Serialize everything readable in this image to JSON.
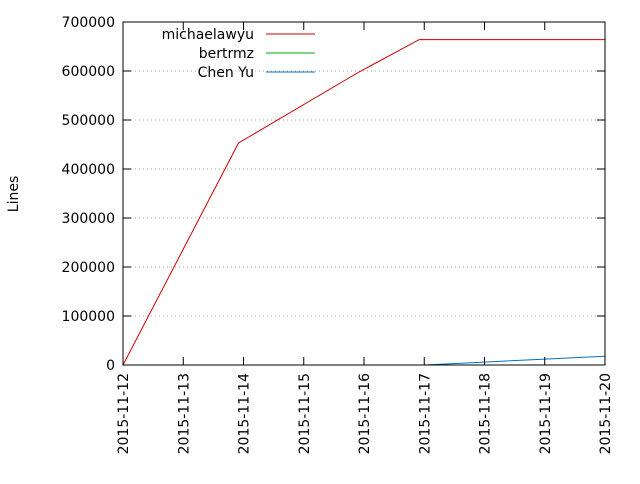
{
  "chart_data": {
    "type": "line",
    "ylabel": "Lines",
    "xlim": [
      "2015-11-12",
      "2015-11-20"
    ],
    "ylim": [
      0,
      700000
    ],
    "y_ticks": [
      0,
      100000,
      200000,
      300000,
      400000,
      500000,
      600000,
      700000
    ],
    "x_ticks": [
      "2015-11-12",
      "2015-11-13",
      "2015-11-14",
      "2015-11-15",
      "2015-11-16",
      "2015-11-17",
      "2015-11-18",
      "2015-11-19",
      "2015-11-20"
    ],
    "grid": "horizontal-dotted",
    "legend": "top-left",
    "series": [
      {
        "name": "michaelawyu",
        "color": "#cc0000",
        "points": [
          [
            "2015-11-12 00:00",
            0
          ],
          [
            "2015-11-13 22:00",
            453000
          ],
          [
            "2015-11-15 22:00",
            598000
          ],
          [
            "2015-11-16 22:00",
            664000
          ],
          [
            "2015-11-20 00:00",
            664000
          ]
        ]
      },
      {
        "name": "bertrmz",
        "color": "#00aa00",
        "points": []
      },
      {
        "name": "Chen Yu",
        "color": "#0070c0",
        "points": [
          [
            "2015-11-17 00:00",
            0
          ],
          [
            "2015-11-18 00:00",
            6000
          ],
          [
            "2015-11-19 00:00",
            12000
          ],
          [
            "2015-11-20 00:00",
            18000
          ]
        ]
      }
    ]
  }
}
